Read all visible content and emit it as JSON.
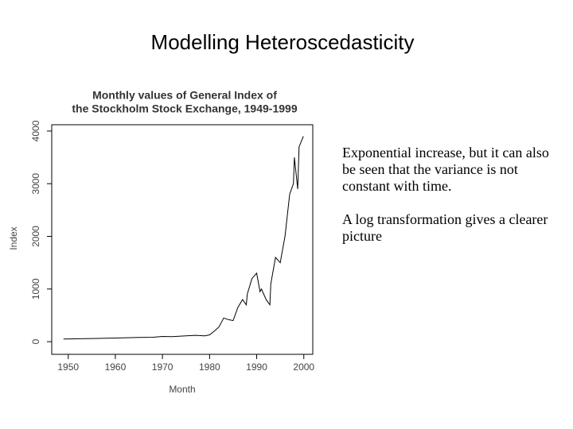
{
  "slide_title": "Modelling Heteroscedasticity",
  "text": [
    "Exponential increase, but it can also be seen that the variance is not constant with time.",
    "A log transformation gives a clearer picture"
  ],
  "chart_data": {
    "type": "line",
    "title": [
      "Monthly values of General Index of",
      "the Stockholm Stock Exchange, 1949-1999"
    ],
    "x_label": "Month",
    "y_label": "Index",
    "x": [
      1949,
      1955,
      1960,
      1965,
      1968,
      1970,
      1972,
      1975,
      1977,
      1979,
      1980,
      1981,
      1982,
      1983,
      1984,
      1985,
      1986,
      1987,
      1987.8,
      1988,
      1989,
      1990,
      1990.7,
      1991,
      1992,
      1992.8,
      1993,
      1994,
      1995,
      1996,
      1997,
      1997.8,
      1998,
      1998.7,
      1999,
      1999.9
    ],
    "values": [
      50,
      60,
      70,
      80,
      85,
      100,
      95,
      110,
      120,
      110,
      130,
      200,
      280,
      450,
      420,
      400,
      650,
      800,
      700,
      900,
      1200,
      1300,
      950,
      1000,
      800,
      700,
      1100,
      1600,
      1500,
      2000,
      2800,
      3000,
      3500,
      2900,
      3700,
      3900
    ],
    "color": "#000000",
    "xlim": [
      1946.5,
      2001.9
    ],
    "ylim": [
      -240,
      4120
    ],
    "xticks": [
      1950,
      1960,
      1970,
      1980,
      1990,
      2000
    ],
    "yticks": [
      0,
      1000,
      2000,
      3000,
      4000
    ]
  }
}
